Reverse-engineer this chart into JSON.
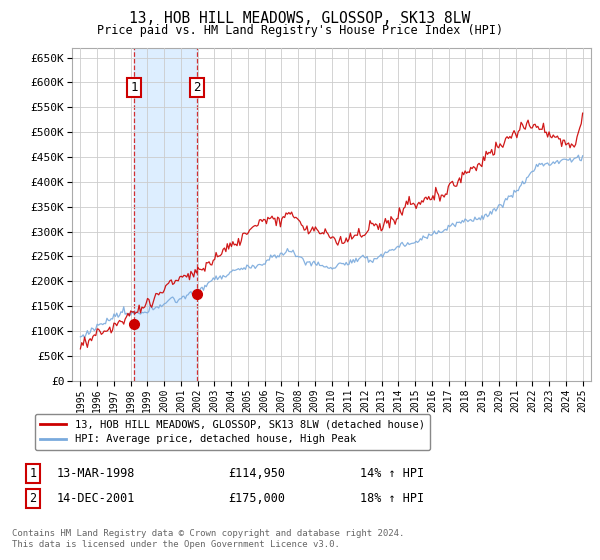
{
  "title": "13, HOB HILL MEADOWS, GLOSSOP, SK13 8LW",
  "subtitle": "Price paid vs. HM Land Registry's House Price Index (HPI)",
  "ylabel_ticks": [
    "£0",
    "£50K",
    "£100K",
    "£150K",
    "£200K",
    "£250K",
    "£300K",
    "£350K",
    "£400K",
    "£450K",
    "£500K",
    "£550K",
    "£600K",
    "£650K"
  ],
  "ytick_values": [
    0,
    50000,
    100000,
    150000,
    200000,
    250000,
    300000,
    350000,
    400000,
    450000,
    500000,
    550000,
    600000,
    650000
  ],
  "xlim": [
    1994.5,
    2025.5
  ],
  "ylim": [
    0,
    670000
  ],
  "xtick_years": [
    1995,
    1996,
    1997,
    1998,
    1999,
    2000,
    2001,
    2002,
    2003,
    2004,
    2005,
    2006,
    2007,
    2008,
    2009,
    2010,
    2011,
    2012,
    2013,
    2014,
    2015,
    2016,
    2017,
    2018,
    2019,
    2020,
    2021,
    2022,
    2023,
    2024,
    2025
  ],
  "sale1_x": 1998.2,
  "sale1_y": 114950,
  "sale1_label": "1",
  "sale2_x": 2001.95,
  "sale2_y": 175000,
  "sale2_label": "2",
  "shaded_x1": 1998.2,
  "shaded_x2": 2001.95,
  "red_line_color": "#cc0000",
  "blue_line_color": "#7aaadd",
  "shade_color": "#ddeeff",
  "grid_color": "#cccccc",
  "background_color": "#ffffff",
  "legend_entry1": "13, HOB HILL MEADOWS, GLOSSOP, SK13 8LW (detached house)",
  "legend_entry2": "HPI: Average price, detached house, High Peak",
  "table_row1_num": "1",
  "table_row1_date": "13-MAR-1998",
  "table_row1_price": "£114,950",
  "table_row1_hpi": "14% ↑ HPI",
  "table_row2_num": "2",
  "table_row2_date": "14-DEC-2001",
  "table_row2_price": "£175,000",
  "table_row2_hpi": "18% ↑ HPI",
  "footnote": "Contains HM Land Registry data © Crown copyright and database right 2024.\nThis data is licensed under the Open Government Licence v3.0."
}
